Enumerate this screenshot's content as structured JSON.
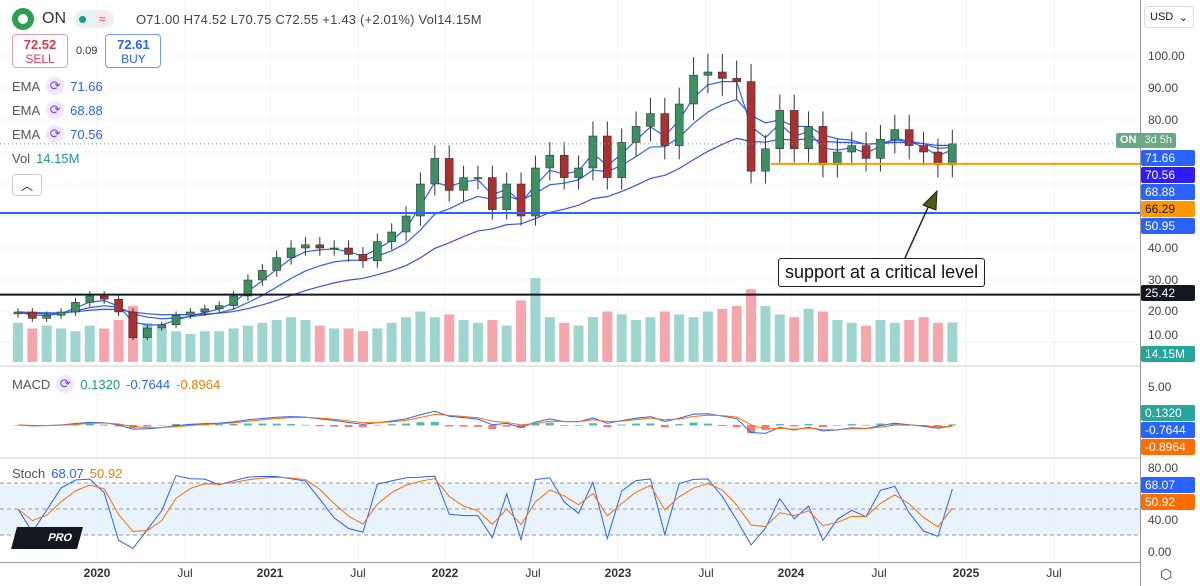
{
  "header": {
    "symbol": "ON",
    "ohlc": "O71.00  H74.52  L70.75  C72.55  +1.43 (+2.01%)  Vol14.15M"
  },
  "trade": {
    "sell_price": "72.52",
    "sell_label": "SELL",
    "spread": "0.09",
    "buy_price": "72.61",
    "buy_label": "BUY"
  },
  "indicators": {
    "ema": [
      {
        "label": "EMA",
        "value": "71.66"
      },
      {
        "label": "EMA",
        "value": "68.88"
      },
      {
        "label": "EMA",
        "value": "70.56"
      }
    ],
    "vol": {
      "label": "Vol",
      "value": "14.15M"
    },
    "macd": {
      "label": "MACD",
      "hist": "0.1320",
      "macd": "-0.7644",
      "signal": "-0.8964"
    },
    "stoch": {
      "label": "Stoch",
      "k": "68.07",
      "d": "50.92"
    }
  },
  "axis": {
    "currency": "USD",
    "price_ticks": [
      "100.00",
      "90.00",
      "80.00",
      "40.00",
      "30.00",
      "20.00",
      "10.00"
    ],
    "macd_ticks": [
      "5.00"
    ],
    "stoch_ticks": [
      "80.00",
      "40.00",
      "0.00"
    ],
    "badges": [
      {
        "value": "71.66",
        "color": "#2962ff"
      },
      {
        "value": "70.56",
        "color": "#2f1bf5"
      },
      {
        "value": "68.88",
        "color": "#2962ff"
      },
      {
        "value": "66.29",
        "color": "#ff9800",
        "text": "#131722"
      },
      {
        "value": "50.95",
        "color": "#2962ff"
      },
      {
        "value": "25.42",
        "color": "#131722"
      },
      {
        "value": "14.15M",
        "color": "#26a69a"
      },
      {
        "value": "0.1320",
        "color": "#26a69a"
      },
      {
        "value": "-0.7644",
        "color": "#2962ff"
      },
      {
        "value": "-0.8964",
        "color": "#ff6d00"
      },
      {
        "value": "68.07",
        "color": "#2962ff"
      },
      {
        "value": "50.92",
        "color": "#ff6d00"
      }
    ],
    "countdown_symbol": "ON",
    "countdown": "3d 5h"
  },
  "time_axis": [
    "2020",
    "Jul",
    "2021",
    "Jul",
    "2022",
    "Jul",
    "2023",
    "Jul",
    "2024",
    "Jul",
    "2025",
    "Jul"
  ],
  "annotation": {
    "text": "support at a critical level"
  },
  "branding": {
    "logo": "PRO"
  },
  "levels": [
    {
      "price": 25.42,
      "color": "#131722"
    },
    {
      "price": 50.95,
      "color": "#2962ff"
    },
    {
      "price": 66.29,
      "color": "#ff9800",
      "from": "2023-11"
    }
  ],
  "chart_data": {
    "type": "candlestick",
    "interval": "monthly (approx.)",
    "start": "2019-07",
    "close": [
      20,
      18,
      19,
      20,
      23,
      25,
      24,
      20,
      12,
      15,
      16,
      19,
      20,
      21,
      22,
      25,
      30,
      33,
      37,
      40,
      41,
      40,
      40,
      38,
      36,
      42,
      45,
      50,
      60,
      68,
      58,
      62,
      62,
      52,
      60,
      50,
      65,
      69,
      62,
      65,
      75,
      62,
      73,
      78,
      82,
      72,
      85,
      94,
      95,
      93,
      92,
      64,
      71,
      83,
      71,
      78,
      66,
      70,
      72,
      68,
      74,
      77,
      72,
      70,
      66,
      72.55
    ],
    "volume_m": [
      14,
      12,
      13,
      12,
      11,
      13,
      12,
      15,
      20,
      14,
      12,
      11,
      10,
      11,
      11,
      12,
      13,
      14,
      15,
      16,
      15,
      13,
      12,
      12,
      11,
      12,
      14,
      16,
      18,
      16,
      17,
      15,
      14,
      15,
      13,
      22,
      30,
      16,
      14,
      13,
      16,
      18,
      17,
      15,
      16,
      18,
      17,
      16,
      18,
      19,
      20,
      26,
      20,
      17,
      16,
      19,
      18,
      15,
      14,
      13,
      15,
      14,
      15,
      16,
      14,
      14.15
    ]
  }
}
